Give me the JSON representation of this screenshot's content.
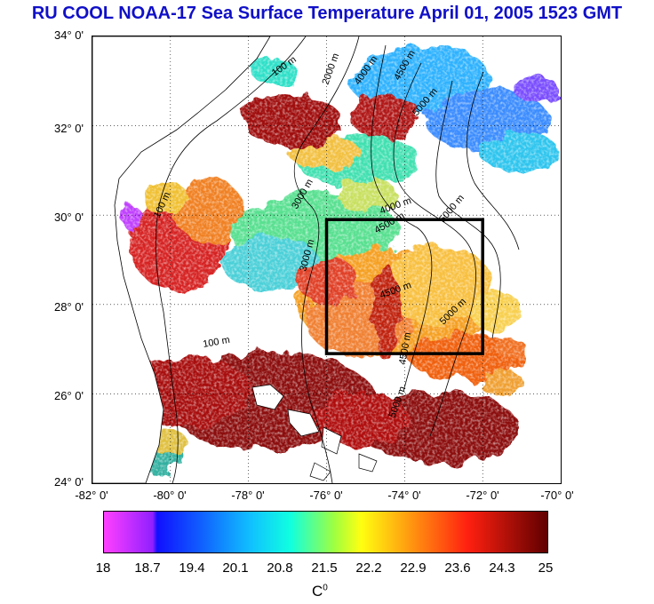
{
  "title": "RU COOL  NOAA-17 Sea Surface Temperature April 01, 2005 1523 GMT",
  "map": {
    "lat_range": [
      24,
      34
    ],
    "lon_range": [
      -82,
      -70
    ],
    "lat_labels": [
      "34° 0'",
      "32° 0'",
      "30° 0'",
      "28° 0'",
      "26° 0'",
      "24° 0'"
    ],
    "lon_labels": [
      "-82° 0'",
      "-80° 0'",
      "-78° 0'",
      "-76° 0'",
      "-74° 0'",
      "-72° 0'",
      "-70° 0'"
    ],
    "study_box": {
      "lon": [
        -76,
        -72
      ],
      "lat": [
        27,
        30
      ]
    },
    "contour_labels": [
      "100 m",
      "2000 m",
      "4000 m",
      "4500 m",
      "5000 m",
      "3000 m",
      "100 m",
      "3000 m",
      "4000 m",
      "4500 m",
      "5000 m",
      "5000 m",
      "4500 m",
      "100 m",
      "4500 m",
      "5000 m"
    ],
    "grid": true,
    "legend_position": "bottom"
  },
  "colorbar": {
    "ticks": [
      "18",
      "18.7",
      "19.4",
      "20.1",
      "20.8",
      "21.5",
      "22.2",
      "22.9",
      "23.6",
      "24.3",
      "25"
    ],
    "unit": "C",
    "unit_sup": "0",
    "range": [
      18,
      25
    ]
  }
}
